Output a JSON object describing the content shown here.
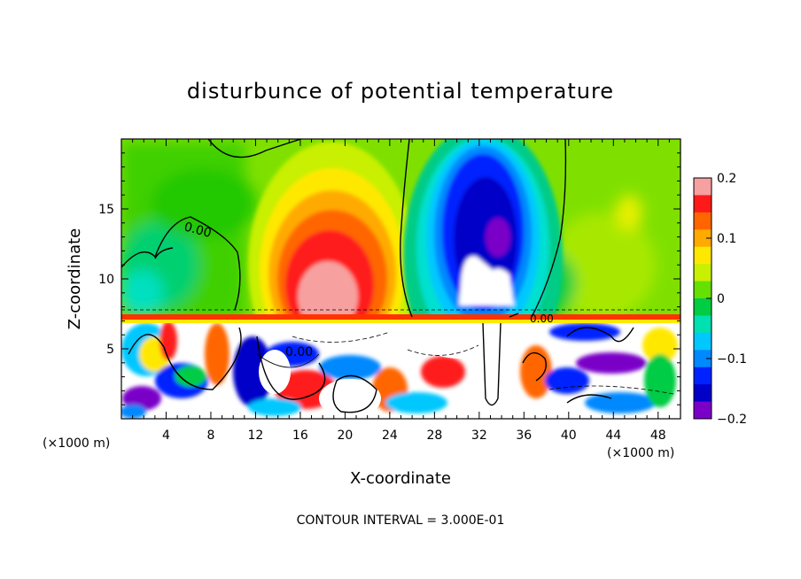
{
  "chart_data": {
    "type": "heatmap",
    "title": "disturbunce of potential temperature",
    "xlabel": "X-coordinate",
    "ylabel": "Z-coordinate",
    "x_unit_left": "(×1000 m)",
    "x_unit_right": "(×1000 m)",
    "xlim": [
      0,
      50
    ],
    "ylim": [
      0,
      20
    ],
    "xticks": [
      "4",
      "8",
      "12",
      "16",
      "20",
      "24",
      "28",
      "32",
      "36",
      "40",
      "44",
      "48"
    ],
    "yticks": [
      "5",
      "10",
      "15"
    ],
    "colorbar": {
      "ticks": [
        "0.2",
        "0.1",
        "0",
        "−0.1",
        "−0.2"
      ],
      "values": [
        0.2,
        0.1,
        0,
        -0.1,
        -0.2
      ],
      "range": [
        -0.2,
        0.2
      ],
      "colors": [
        "#f7a0a0",
        "#ff1a1a",
        "#ff6600",
        "#ffaa00",
        "#ffe800",
        "#c8f000",
        "#66e000",
        "#00cc44",
        "#00e0b0",
        "#00c8ff",
        "#0088ff",
        "#0022ff",
        "#0000c8",
        "#7a00c8"
      ]
    },
    "contour_label": "0.00",
    "contour_interval_text": "CONTOUR INTERVAL = 3.000E-01",
    "features": [
      {
        "name": "warm anomaly",
        "x": 19,
        "z": 11,
        "value": 0.2
      },
      {
        "name": "cold anomaly",
        "x": 33,
        "z": 13,
        "value": -0.2
      }
    ]
  }
}
